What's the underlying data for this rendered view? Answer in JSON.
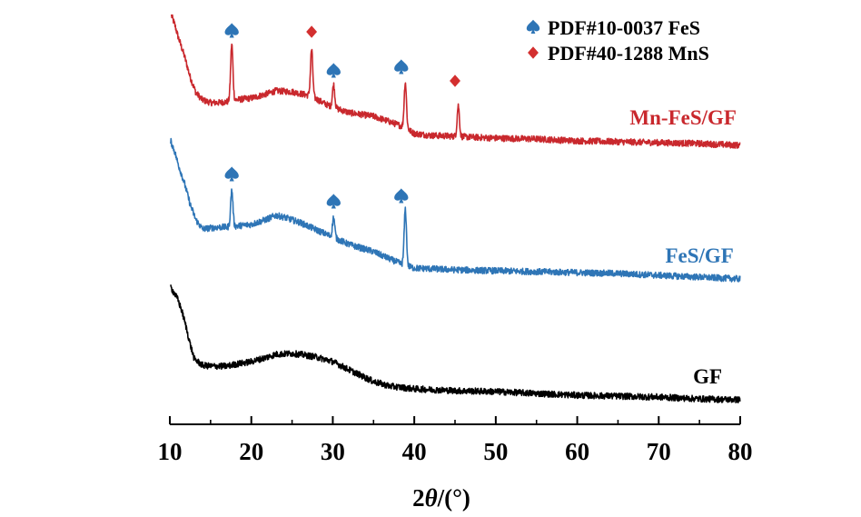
{
  "chart_data": {
    "type": "line",
    "title": "",
    "xlabel": "2θ/(°)",
    "ylabel": "",
    "xlim": [
      10,
      80
    ],
    "ylim": [
      0,
      470
    ],
    "y_units": "relative intensity (a.u., stacked)",
    "x_ticks": [
      10,
      20,
      30,
      40,
      50,
      60,
      70,
      80
    ],
    "x_minor_ticks": [
      15,
      25,
      35,
      45,
      55,
      65,
      75
    ],
    "grid": false,
    "legend": {
      "placement": "top-right",
      "entries": [
        {
          "label": "PDF#10-0037 FeS",
          "marker": "spade",
          "color": "#2e75b6"
        },
        {
          "label": "PDF#40-1288 MnS",
          "marker": "diamond",
          "color": "#d32f2f"
        }
      ]
    },
    "series": [
      {
        "name": "Mn-FeS/GF",
        "color": "#c9282d",
        "baseline_points": [
          [
            10.2,
            450
          ],
          [
            10.6,
            440
          ],
          [
            11,
            427
          ],
          [
            11.8,
            405
          ],
          [
            12.5,
            382
          ],
          [
            13.2,
            365
          ],
          [
            14,
            357
          ],
          [
            15,
            354
          ],
          [
            16,
            354
          ],
          [
            17,
            355
          ],
          [
            18,
            357
          ],
          [
            20,
            359
          ],
          [
            22,
            364
          ],
          [
            23,
            367
          ],
          [
            25,
            366
          ],
          [
            26,
            364
          ],
          [
            27,
            362
          ],
          [
            28,
            358
          ],
          [
            29,
            353
          ],
          [
            30,
            349
          ],
          [
            32,
            343
          ],
          [
            35,
            339
          ],
          [
            37,
            333
          ],
          [
            38.8,
            327
          ],
          [
            40,
            320
          ],
          [
            42,
            318
          ],
          [
            45,
            317
          ],
          [
            47,
            316
          ],
          [
            50,
            315
          ],
          [
            55,
            314
          ],
          [
            60,
            312
          ],
          [
            65,
            311
          ],
          [
            70,
            310
          ],
          [
            75,
            309
          ],
          [
            80,
            307
          ]
        ],
        "peaks": [
          {
            "x": 17.6,
            "height": 62,
            "phase": "FeS"
          },
          {
            "x": 27.4,
            "height": 52,
            "phase": "MnS"
          },
          {
            "x": 30.1,
            "height": 25,
            "phase": "FeS"
          },
          {
            "x": 38.9,
            "height": 50,
            "phase": "FeS"
          },
          {
            "x": 45.4,
            "height": 34,
            "phase": "MnS"
          }
        ],
        "markers": [
          {
            "x": 17.6,
            "y": 434,
            "type": "spade",
            "color": "#2e75b6"
          },
          {
            "x": 27.4,
            "y": 432,
            "type": "diamond",
            "color": "#d32f2f"
          },
          {
            "x": 30.1,
            "y": 390,
            "type": "spade",
            "color": "#2e75b6"
          },
          {
            "x": 38.4,
            "y": 394,
            "type": "spade",
            "color": "#2e75b6"
          },
          {
            "x": 45.0,
            "y": 378,
            "type": "diamond",
            "color": "#d32f2f"
          }
        ],
        "label_position": [
          73,
          330
        ]
      },
      {
        "name": "FeS/GF",
        "color": "#2e75b6",
        "baseline_points": [
          [
            10.1,
            312
          ],
          [
            10.6,
            300
          ],
          [
            11,
            287
          ],
          [
            11.8,
            265
          ],
          [
            12.5,
            242
          ],
          [
            13.2,
            225
          ],
          [
            14,
            215
          ],
          [
            15,
            216
          ],
          [
            16,
            217
          ],
          [
            17,
            217
          ],
          [
            18,
            218
          ],
          [
            20,
            220
          ],
          [
            22,
            226
          ],
          [
            23,
            230
          ],
          [
            24,
            228
          ],
          [
            26,
            222
          ],
          [
            28,
            214
          ],
          [
            30,
            206
          ],
          [
            32,
            198
          ],
          [
            35,
            190
          ],
          [
            37,
            182
          ],
          [
            38.8,
            175
          ],
          [
            40,
            172
          ],
          [
            45,
            170
          ],
          [
            50,
            169
          ],
          [
            55,
            168
          ],
          [
            60,
            167
          ],
          [
            65,
            166
          ],
          [
            70,
            164
          ],
          [
            75,
            162
          ],
          [
            80,
            160
          ]
        ],
        "peaks": [
          {
            "x": 17.6,
            "height": 40,
            "phase": "FeS"
          },
          {
            "x": 30.1,
            "height": 22,
            "phase": "FeS"
          },
          {
            "x": 38.9,
            "height": 62,
            "phase": "FeS"
          }
        ],
        "markers": [
          {
            "x": 17.6,
            "y": 276,
            "type": "spade",
            "color": "#2e75b6"
          },
          {
            "x": 30.1,
            "y": 246,
            "type": "spade",
            "color": "#2e75b6"
          },
          {
            "x": 38.4,
            "y": 252,
            "type": "spade",
            "color": "#2e75b6"
          }
        ],
        "label_position": [
          75,
          178
        ]
      },
      {
        "name": "GF",
        "color": "#000000",
        "baseline_points": [
          [
            10.1,
            151
          ],
          [
            10.5,
            145
          ],
          [
            11,
            137
          ],
          [
            11.5,
            124
          ],
          [
            12,
            107
          ],
          [
            12.5,
            88
          ],
          [
            13,
            72
          ],
          [
            14,
            65
          ],
          [
            15,
            64
          ],
          [
            17,
            64
          ],
          [
            18,
            66
          ],
          [
            20,
            69
          ],
          [
            22,
            74
          ],
          [
            23,
            77
          ],
          [
            25,
            78
          ],
          [
            26,
            77
          ],
          [
            28,
            74
          ],
          [
            30,
            69
          ],
          [
            32,
            60
          ],
          [
            35,
            47
          ],
          [
            37,
            42
          ],
          [
            40,
            39
          ],
          [
            45,
            37
          ],
          [
            50,
            36
          ],
          [
            55,
            34
          ],
          [
            60,
            32
          ],
          [
            65,
            31
          ],
          [
            70,
            30
          ],
          [
            75,
            28
          ],
          [
            80,
            27
          ]
        ],
        "peaks": [],
        "markers": [],
        "label_position": [
          76,
          45
        ]
      }
    ]
  }
}
